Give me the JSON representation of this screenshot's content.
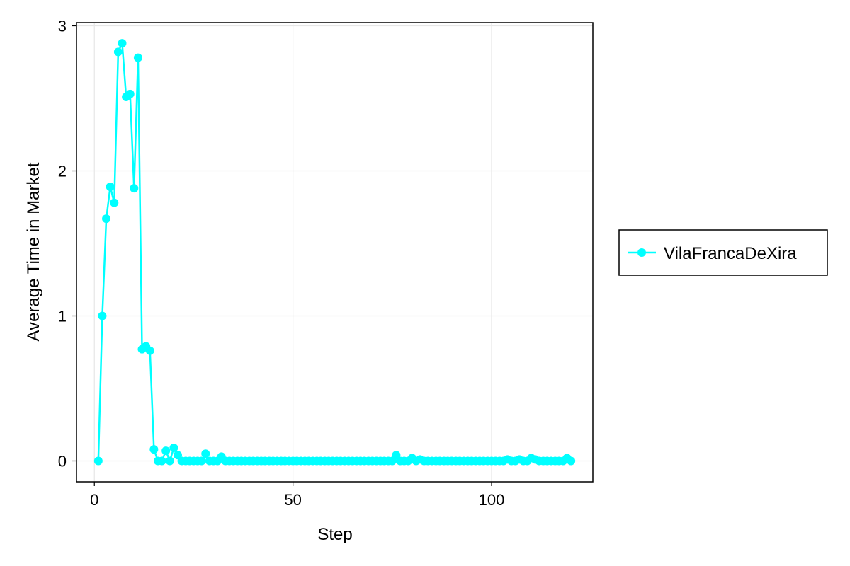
{
  "chart_data": {
    "type": "line",
    "title": "",
    "xlabel": "Step",
    "ylabel": "Average Time in Market",
    "xlim": [
      -4.5,
      125.5
    ],
    "ylim": [
      -0.144,
      3.022
    ],
    "xticks": [
      0,
      50,
      100
    ],
    "yticks": [
      0,
      1,
      2,
      3
    ],
    "grid": true,
    "legend_position": "outside-right",
    "series": [
      {
        "name": "VilaFrancaDeXira",
        "color": "#00ffff",
        "marker": "circle",
        "x": [
          1,
          2,
          3,
          4,
          5,
          6,
          7,
          8,
          9,
          10,
          11,
          12,
          13,
          14,
          15,
          16,
          17,
          18,
          19,
          20,
          21,
          22,
          23,
          24,
          25,
          26,
          27,
          28,
          29,
          30,
          31,
          32,
          33,
          34,
          35,
          36,
          37,
          38,
          39,
          40,
          41,
          42,
          43,
          44,
          45,
          46,
          47,
          48,
          49,
          50,
          51,
          52,
          53,
          54,
          55,
          56,
          57,
          58,
          59,
          60,
          61,
          62,
          63,
          64,
          65,
          66,
          67,
          68,
          69,
          70,
          71,
          72,
          73,
          74,
          75,
          76,
          77,
          78,
          79,
          80,
          81,
          82,
          83,
          84,
          85,
          86,
          87,
          88,
          89,
          90,
          91,
          92,
          93,
          94,
          95,
          96,
          97,
          98,
          99,
          100,
          101,
          102,
          103,
          104,
          105,
          106,
          107,
          108,
          109,
          110,
          111,
          112,
          113,
          114,
          115,
          116,
          117,
          118,
          119,
          120
        ],
        "y": [
          0,
          1.0,
          1.67,
          1.89,
          1.78,
          2.82,
          2.88,
          2.51,
          2.53,
          1.88,
          2.78,
          0.77,
          0.79,
          0.76,
          0.08,
          0,
          0,
          0.07,
          0,
          0.09,
          0.04,
          0,
          0,
          0,
          0,
          0,
          0,
          0.05,
          0,
          0,
          0,
          0.03,
          0,
          0,
          0,
          0,
          0,
          0,
          0,
          0,
          0,
          0,
          0,
          0,
          0,
          0,
          0,
          0,
          0,
          0,
          0,
          0,
          0,
          0,
          0,
          0,
          0,
          0,
          0,
          0,
          0,
          0,
          0,
          0,
          0,
          0,
          0,
          0,
          0,
          0,
          0,
          0,
          0,
          0,
          0,
          0.04,
          0,
          0,
          0,
          0.02,
          0,
          0.01,
          0,
          0,
          0,
          0,
          0,
          0,
          0,
          0,
          0,
          0,
          0,
          0,
          0,
          0,
          0,
          0,
          0,
          0,
          0,
          0,
          0,
          0.01,
          0,
          0,
          0.01,
          0,
          0,
          0.02,
          0.01,
          0,
          0,
          0,
          0,
          0,
          0,
          0,
          0.02,
          0
        ]
      }
    ]
  }
}
